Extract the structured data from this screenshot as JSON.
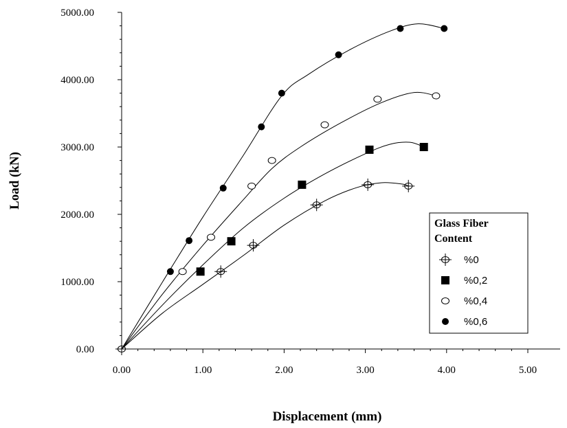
{
  "chart_data": {
    "type": "line",
    "xlabel": "Displacement (mm)",
    "ylabel": "Load (kN)",
    "xlim": [
      0,
      5
    ],
    "ylim": [
      0,
      5000
    ],
    "x_ticks": [
      "0.00",
      "1.00",
      "2.00",
      "3.00",
      "4.00",
      "5.00"
    ],
    "y_ticks": [
      "0.00",
      "1000.00",
      "2000.00",
      "3000.00",
      "4000.00",
      "5000.00"
    ],
    "grid": false,
    "legend": {
      "position": "right",
      "title_line1": "Glass Fiber",
      "title_line2": "Content"
    },
    "series": [
      {
        "name": "%0",
        "marker": "cross-circle",
        "points": [
          [
            0,
            0
          ],
          [
            1.22,
            1150
          ],
          [
            1.62,
            1540
          ],
          [
            2.4,
            2140
          ],
          [
            3.03,
            2440
          ],
          [
            3.53,
            2420
          ]
        ],
        "curve": [
          [
            0,
            0
          ],
          [
            0.5,
            530
          ],
          [
            1.0,
            960
          ],
          [
            1.5,
            1390
          ],
          [
            2.0,
            1840
          ],
          [
            2.5,
            2200
          ],
          [
            2.9,
            2400
          ],
          [
            3.2,
            2470
          ],
          [
            3.45,
            2450
          ],
          [
            3.53,
            2420
          ]
        ]
      },
      {
        "name": "%0,2",
        "marker": "filled-square",
        "points": [
          [
            0.97,
            1150
          ],
          [
            1.35,
            1600
          ],
          [
            2.22,
            2440
          ],
          [
            3.05,
            2960
          ],
          [
            3.72,
            3000
          ]
        ],
        "curve": [
          [
            0,
            0
          ],
          [
            0.5,
            650
          ],
          [
            1.0,
            1250
          ],
          [
            1.5,
            1800
          ],
          [
            2.0,
            2240
          ],
          [
            2.5,
            2600
          ],
          [
            3.0,
            2900
          ],
          [
            3.3,
            3040
          ],
          [
            3.55,
            3070
          ],
          [
            3.72,
            3000
          ]
        ]
      },
      {
        "name": "%0,4",
        "marker": "open-circle",
        "points": [
          [
            0.75,
            1150
          ],
          [
            1.1,
            1660
          ],
          [
            1.6,
            2420
          ],
          [
            1.85,
            2800
          ],
          [
            2.5,
            3330
          ],
          [
            3.15,
            3710
          ],
          [
            3.87,
            3760
          ]
        ],
        "curve": [
          [
            0,
            0
          ],
          [
            0.5,
            810
          ],
          [
            1.0,
            1540
          ],
          [
            1.5,
            2220
          ],
          [
            1.85,
            2680
          ],
          [
            2.2,
            3000
          ],
          [
            2.7,
            3360
          ],
          [
            3.2,
            3660
          ],
          [
            3.6,
            3810
          ],
          [
            3.87,
            3760
          ]
        ]
      },
      {
        "name": "%0,6",
        "marker": "filled-circle",
        "points": [
          [
            0.6,
            1150
          ],
          [
            0.83,
            1610
          ],
          [
            1.25,
            2390
          ],
          [
            1.72,
            3300
          ],
          [
            1.97,
            3800
          ],
          [
            2.67,
            4370
          ],
          [
            3.43,
            4760
          ],
          [
            3.97,
            4760
          ]
        ],
        "curve": [
          [
            0,
            0
          ],
          [
            0.5,
            990
          ],
          [
            1.0,
            1960
          ],
          [
            1.5,
            2880
          ],
          [
            1.97,
            3760
          ],
          [
            2.3,
            4080
          ],
          [
            2.8,
            4440
          ],
          [
            3.3,
            4720
          ],
          [
            3.65,
            4830
          ],
          [
            3.97,
            4760
          ]
        ]
      }
    ]
  }
}
